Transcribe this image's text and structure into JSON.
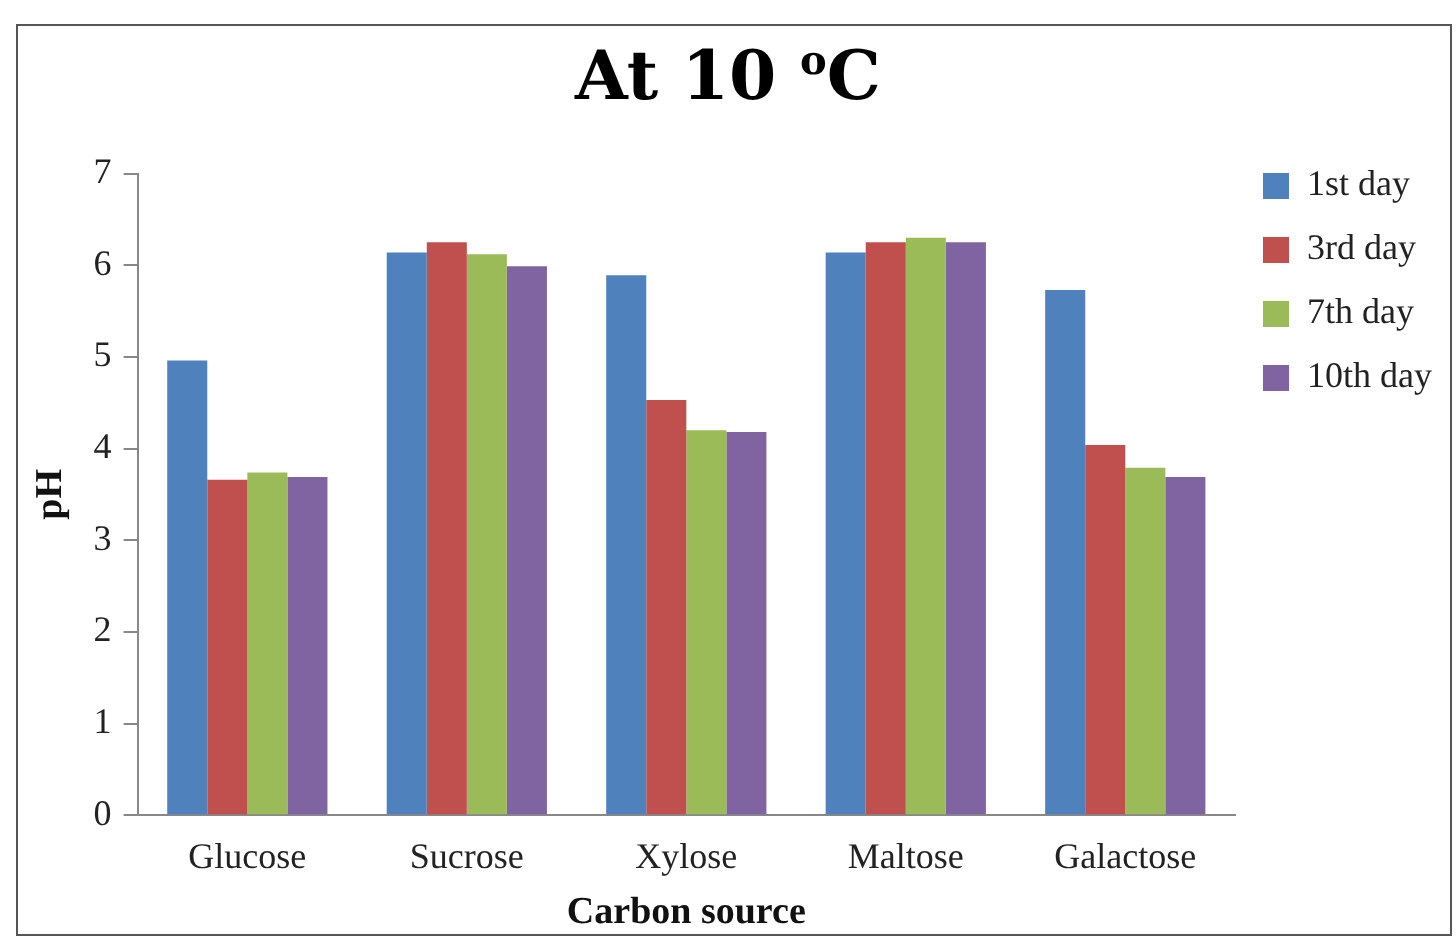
{
  "chart_data": {
    "type": "bar",
    "title": "At 10 $^{o}$C",
    "xlabel": "Carbon source",
    "ylabel": "pH",
    "categories": [
      "Glucose",
      "Sucrose",
      "Xylose",
      "Maltose",
      "Galactose"
    ],
    "series": [
      {
        "name": "1st day",
        "color": "#4f81bd",
        "values": [
          4.96,
          6.14,
          5.89,
          6.14,
          5.73
        ]
      },
      {
        "name": "3rd day",
        "color": "#c0504d",
        "values": [
          3.66,
          6.25,
          4.53,
          6.25,
          4.04
        ]
      },
      {
        "name": "7th day",
        "color": "#9bbb59",
        "values": [
          3.74,
          6.12,
          4.2,
          6.3,
          3.79
        ]
      },
      {
        "name": "10th day",
        "color": "#8064a2",
        "values": [
          3.69,
          5.99,
          4.18,
          6.25,
          3.69
        ]
      }
    ],
    "ylim": [
      0,
      7
    ],
    "yticks": [
      0,
      1,
      2,
      3,
      4,
      5,
      6,
      7
    ],
    "grid": false,
    "legend": "right"
  }
}
